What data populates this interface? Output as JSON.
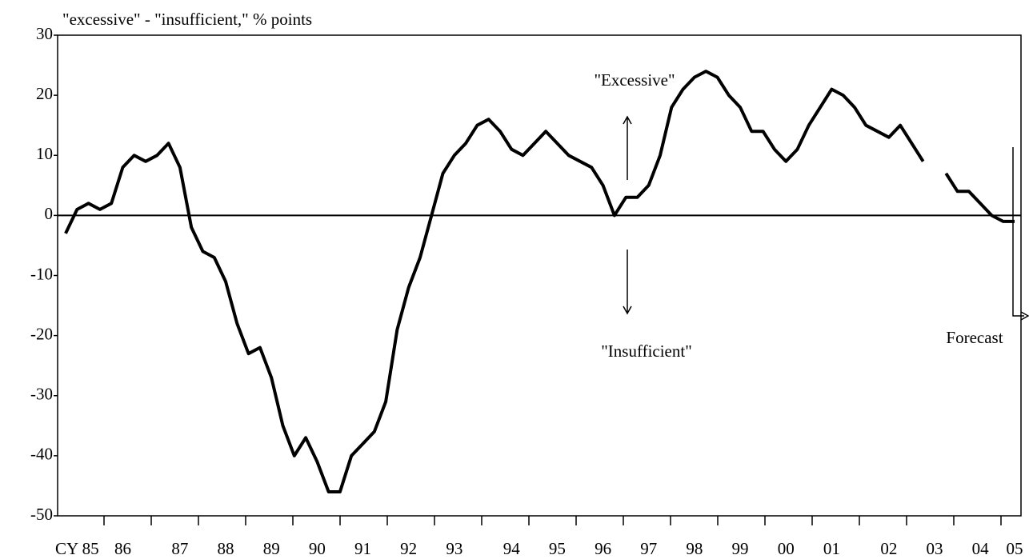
{
  "chart_data": {
    "type": "line",
    "y_label": "\"excessive\" - \"insufficient,\" % points",
    "annotations": [
      "\"Excessive\"",
      "\"Insufficient\"",
      "Forecast"
    ],
    "ylim": [
      -50,
      30
    ],
    "yticks": [
      -50,
      -40,
      -30,
      -20,
      -10,
      0,
      10,
      20,
      30
    ],
    "color": "#000000",
    "categories": [
      null,
      "CY 85",
      null,
      null,
      null,
      "86",
      null,
      null,
      null,
      null,
      "87",
      null,
      null,
      null,
      "88",
      null,
      null,
      null,
      "89",
      null,
      null,
      null,
      "90",
      null,
      null,
      null,
      "91",
      null,
      null,
      null,
      "92",
      null,
      null,
      null,
      "93",
      null,
      null,
      null,
      null,
      "94",
      null,
      null,
      null,
      "95",
      null,
      null,
      null,
      "96",
      null,
      null,
      null,
      "97",
      null,
      null,
      null,
      "98",
      null,
      null,
      null,
      "99",
      null,
      null,
      null,
      "00",
      null,
      null,
      null,
      "01",
      null,
      null,
      null,
      null,
      "02",
      null,
      null,
      null,
      "03",
      null,
      null,
      null,
      "04",
      null,
      null,
      "05"
    ],
    "values": [
      -3,
      1,
      2,
      1,
      2,
      8,
      10,
      9,
      10,
      12,
      8,
      -2,
      -6,
      -7,
      -11,
      -18,
      -23,
      -22,
      -27,
      -35,
      -40,
      -37,
      -41,
      -46,
      -46,
      -40,
      -38,
      -36,
      -31,
      -19,
      -12,
      -7,
      0,
      7,
      10,
      12,
      15,
      16,
      14,
      11,
      10,
      12,
      14,
      12,
      10,
      9,
      8,
      5,
      0,
      3,
      3,
      5,
      10,
      18,
      21,
      23,
      24,
      23,
      20,
      18,
      14,
      14,
      11,
      9,
      11,
      15,
      18,
      21,
      20,
      18,
      15,
      14,
      13,
      15,
      12,
      9,
      null,
      7,
      4,
      4,
      2,
      0,
      -1,
      -1
    ]
  }
}
